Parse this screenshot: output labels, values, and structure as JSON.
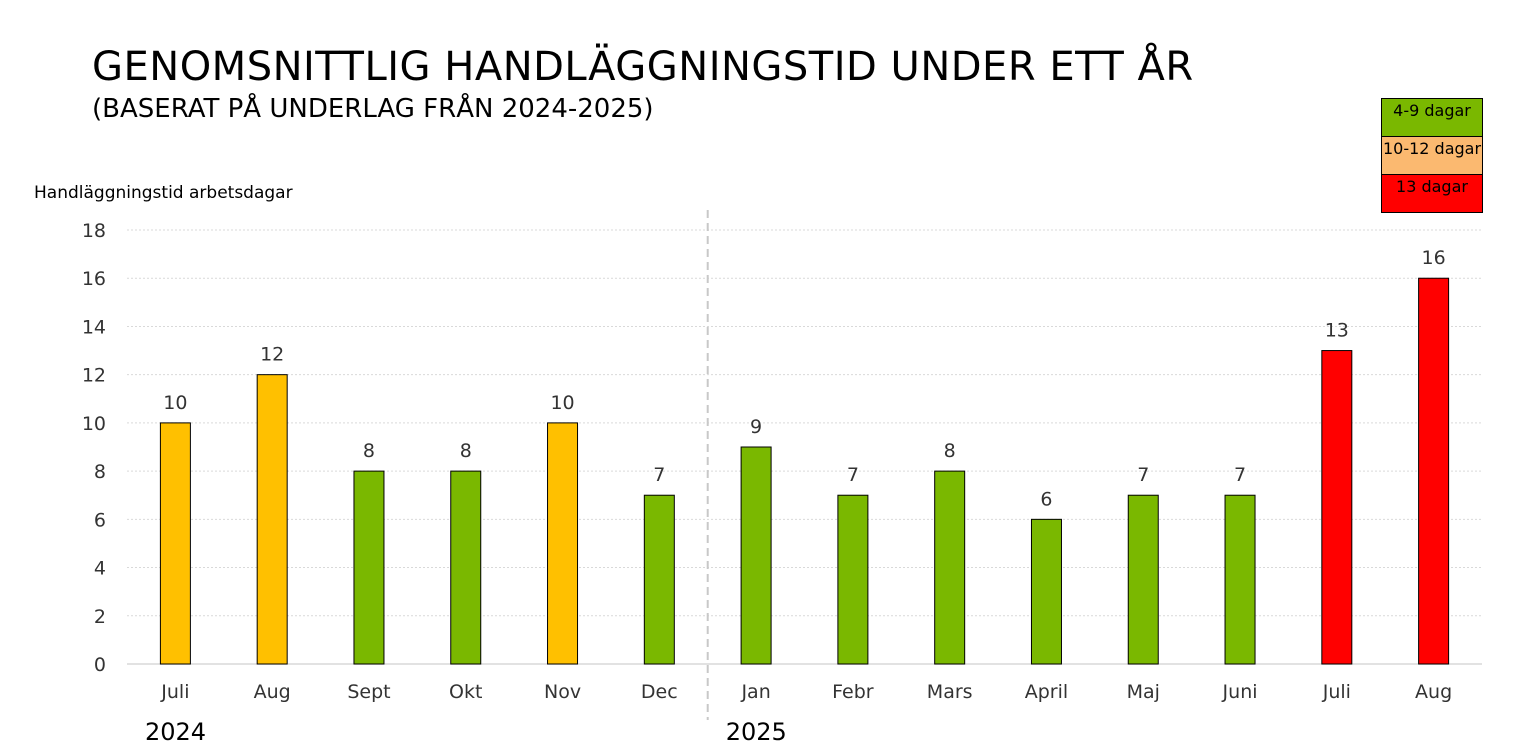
{
  "title": "GENOMSNITTLIG HANDLÄGGNINGSTID UNDER ETT ÅR",
  "subtitle": "(BASERAT PÅ UNDERLAG FRÅN 2024-2025)",
  "legend": {
    "items": [
      {
        "label": "4-9 dagar",
        "color": "#7AB800"
      },
      {
        "label": "10-12 dagar",
        "color": "#FBB970"
      },
      {
        "label": "13 dagar",
        "color": "#FF0000"
      }
    ]
  },
  "colors": {
    "green": "#7AB800",
    "orange": "#FFC000",
    "red": "#FF0000"
  },
  "chart_data": {
    "type": "bar",
    "ylabel": "Handläggningstid arbetsdagar",
    "ylim": [
      0,
      18
    ],
    "yticks": [
      "0",
      "2",
      "4",
      "6",
      "8",
      "10",
      "12",
      "14",
      "16",
      "18"
    ],
    "grid": true,
    "categories": [
      "Juli",
      "Aug",
      "Sept",
      "Okt",
      "Nov",
      "Dec",
      "Jan",
      "Febr",
      "Mars",
      "April",
      "Maj",
      "Juni",
      "Juli",
      "Aug"
    ],
    "values": [
      10,
      12,
      8,
      8,
      10,
      7,
      9,
      7,
      8,
      6,
      7,
      7,
      13,
      16
    ],
    "bar_colors": [
      "#FFC000",
      "#FFC000",
      "#7AB800",
      "#7AB800",
      "#FFC000",
      "#7AB800",
      "#7AB800",
      "#7AB800",
      "#7AB800",
      "#7AB800",
      "#7AB800",
      "#7AB800",
      "#FF0000",
      "#FF0000"
    ],
    "year_groups": [
      {
        "label": "2024",
        "start_index": 0
      },
      {
        "label": "2025",
        "start_index": 6
      }
    ]
  }
}
